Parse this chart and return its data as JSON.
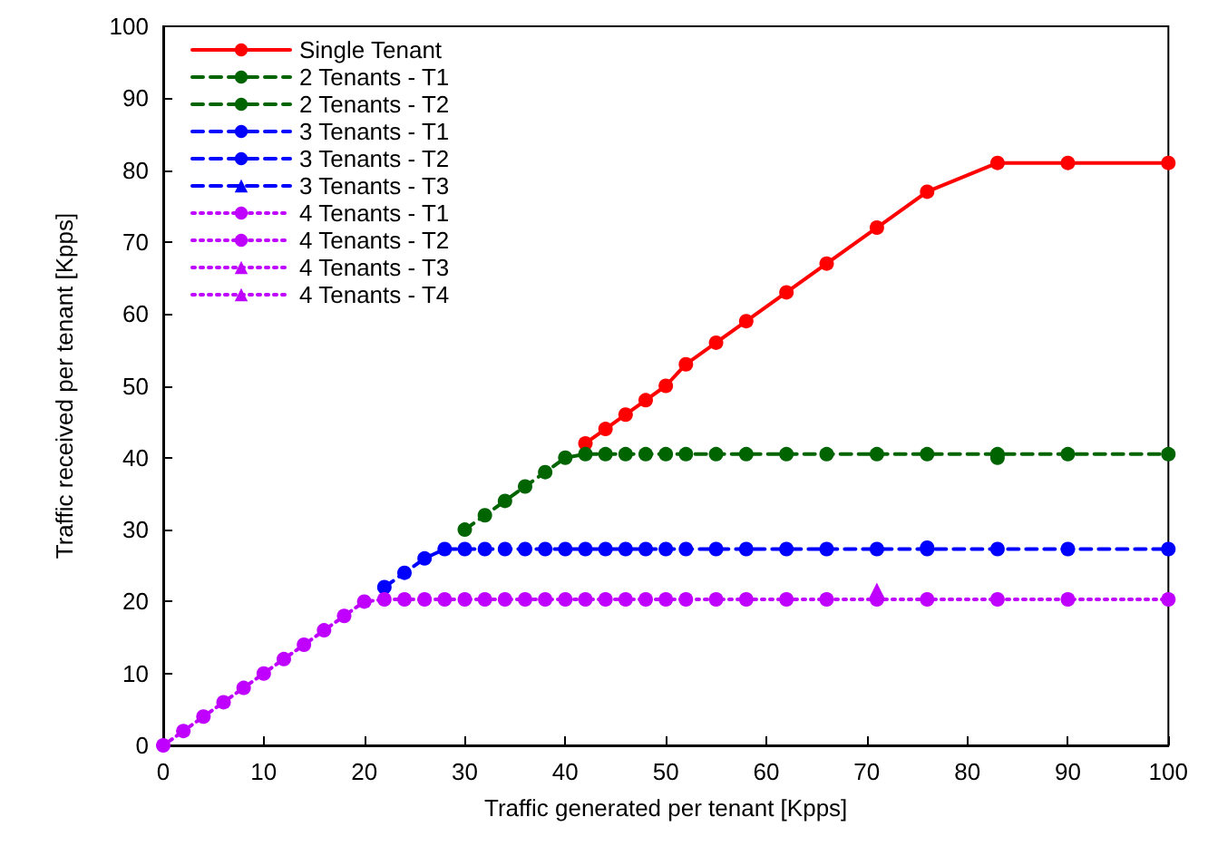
{
  "chart_data": {
    "type": "line",
    "xlabel": "Traffic generated per tenant [Kpps]",
    "ylabel": "Traffic received per tenant [Kpps]",
    "x": [
      0,
      2,
      4,
      6,
      8,
      10,
      12,
      14,
      16,
      18,
      20,
      22,
      24,
      26,
      28,
      30,
      32,
      34,
      36,
      38,
      40,
      42,
      44,
      46,
      48,
      50,
      52,
      55,
      58,
      62,
      66,
      71,
      76,
      83,
      90,
      100
    ],
    "xlim": [
      0,
      100
    ],
    "xticks": [
      0,
      10,
      20,
      30,
      40,
      50,
      60,
      70,
      80,
      90,
      100
    ],
    "ylim": [
      0,
      100
    ],
    "yticks": [
      0,
      10,
      20,
      30,
      40,
      50,
      60,
      70,
      80,
      90,
      100
    ],
    "grid": false,
    "legend": "top left",
    "series": [
      {
        "name": "Single Tenant",
        "color": "#ff0000",
        "marker": "circle",
        "line_style": "solid",
        "values": [
          null,
          null,
          null,
          null,
          null,
          null,
          null,
          null,
          null,
          null,
          null,
          null,
          null,
          null,
          null,
          null,
          null,
          null,
          null,
          null,
          null,
          42,
          44,
          46,
          48,
          50,
          53,
          56,
          59,
          63,
          67,
          72,
          77,
          81,
          81,
          81
        ]
      },
      {
        "name": "2 Tenants - T1",
        "color": "#006400",
        "marker": "circle",
        "line_style": "dashed",
        "values": [
          null,
          null,
          null,
          null,
          null,
          null,
          null,
          null,
          null,
          null,
          null,
          null,
          null,
          null,
          null,
          30,
          32,
          34,
          36,
          38,
          40,
          40.5,
          40.5,
          40.5,
          40.5,
          40.5,
          40.5,
          40.5,
          40.5,
          40.5,
          40.5,
          40.5,
          40.5,
          40.5,
          40.5,
          40.5
        ]
      },
      {
        "name": "2 Tenants - T2",
        "color": "#006400",
        "marker": "circle",
        "line_style": "dashed",
        "values": [
          null,
          null,
          null,
          null,
          null,
          null,
          null,
          null,
          null,
          null,
          null,
          null,
          null,
          null,
          null,
          null,
          null,
          null,
          null,
          null,
          null,
          null,
          null,
          null,
          null,
          null,
          null,
          null,
          null,
          null,
          null,
          null,
          null,
          40,
          null,
          null
        ]
      },
      {
        "name": "3 Tenants - T1",
        "color": "#0000ff",
        "marker": "circle",
        "line_style": "dashed",
        "values": [
          null,
          null,
          null,
          null,
          null,
          null,
          null,
          null,
          null,
          null,
          null,
          22,
          24,
          26,
          27.3,
          27.3,
          27.3,
          27.3,
          27.3,
          27.3,
          27.3,
          27.3,
          27.3,
          27.3,
          27.3,
          27.3,
          27.3,
          27.3,
          27.3,
          27.3,
          27.3,
          27.3,
          27.3,
          27.3,
          27.3,
          27.3
        ]
      },
      {
        "name": "3 Tenants - T2",
        "color": "#0000ff",
        "marker": "circle",
        "line_style": "dashed",
        "values": [
          null,
          null,
          null,
          null,
          null,
          null,
          null,
          null,
          null,
          null,
          null,
          null,
          null,
          null,
          null,
          null,
          null,
          null,
          null,
          null,
          null,
          null,
          null,
          null,
          null,
          null,
          null,
          null,
          null,
          null,
          null,
          null,
          27.5,
          null,
          null,
          null
        ]
      },
      {
        "name": "3 Tenants - T3",
        "color": "#0000ff",
        "marker": "triangle",
        "line_style": "dashed",
        "values": [
          null,
          null,
          null,
          null,
          null,
          null,
          null,
          null,
          null,
          null,
          null,
          null,
          null,
          null,
          null,
          null,
          null,
          null,
          null,
          null,
          null,
          null,
          null,
          null,
          null,
          null,
          null,
          null,
          null,
          null,
          null,
          null,
          null,
          null,
          null,
          null
        ]
      },
      {
        "name": "4 Tenants - T1",
        "color": "#bf00ff",
        "marker": "circle",
        "line_style": "dotted",
        "values": [
          0,
          2,
          4,
          6,
          8,
          10,
          12,
          14,
          16,
          18,
          20,
          20.3,
          20.3,
          20.3,
          20.3,
          20.3,
          20.3,
          20.3,
          20.3,
          20.3,
          20.3,
          20.3,
          20.3,
          20.3,
          20.3,
          20.3,
          20.3,
          20.3,
          20.3,
          20.3,
          20.3,
          20.3,
          20.3,
          20.3,
          20.3,
          20.3
        ]
      },
      {
        "name": "4 Tenants - T2",
        "color": "#bf00ff",
        "marker": "circle",
        "line_style": "dotted",
        "values": [
          null,
          null,
          null,
          null,
          null,
          null,
          null,
          null,
          null,
          null,
          null,
          null,
          null,
          null,
          null,
          null,
          null,
          null,
          null,
          null,
          null,
          null,
          null,
          null,
          null,
          null,
          null,
          null,
          null,
          null,
          null,
          null,
          null,
          null,
          null,
          null
        ]
      },
      {
        "name": "4 Tenants - T3",
        "color": "#bf00ff",
        "marker": "triangle",
        "line_style": "dotted",
        "values": [
          null,
          null,
          null,
          null,
          null,
          null,
          null,
          null,
          null,
          null,
          null,
          null,
          null,
          null,
          null,
          null,
          null,
          null,
          null,
          null,
          null,
          null,
          null,
          null,
          null,
          null,
          null,
          null,
          null,
          null,
          null,
          21.5,
          null,
          null,
          null,
          null
        ]
      },
      {
        "name": "4 Tenants - T4",
        "color": "#bf00ff",
        "marker": "triangle",
        "line_style": "dotted",
        "values": [
          null,
          null,
          null,
          null,
          null,
          null,
          null,
          null,
          null,
          null,
          null,
          null,
          null,
          null,
          null,
          null,
          null,
          null,
          null,
          null,
          null,
          null,
          null,
          null,
          null,
          null,
          null,
          null,
          null,
          null,
          null,
          null,
          null,
          null,
          null,
          null
        ]
      }
    ]
  }
}
